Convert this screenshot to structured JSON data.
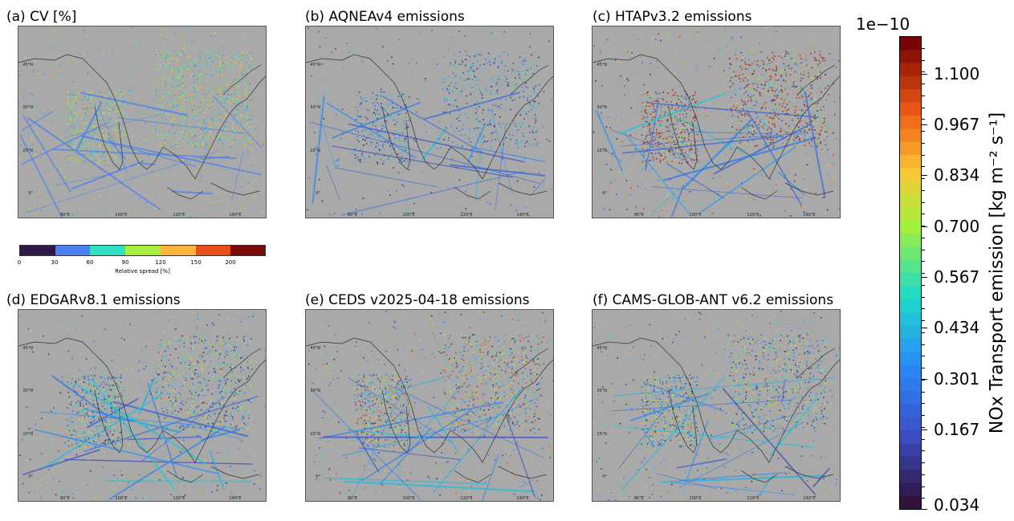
{
  "panels": [
    {
      "id": "a",
      "title": "(a) CV [%]",
      "style": "cv"
    },
    {
      "id": "b",
      "title": "(b) AQNEAv4 emissions",
      "style": "low"
    },
    {
      "id": "c",
      "title": "(c) HTAPv3.2 emissions",
      "style": "high"
    },
    {
      "id": "d",
      "title": "(d) EDGARv8.1 emissions",
      "style": "mid"
    },
    {
      "id": "e",
      "title": "(e) CEDS v2025-04-18 emissions",
      "style": "midhigh"
    },
    {
      "id": "f",
      "title": "(f) CAMS-GLOB-ANT v6.2 emissions",
      "style": "mid"
    }
  ],
  "map_axes": {
    "lat_labels": [
      "45°N",
      "30°N",
      "15°N",
      "0°"
    ],
    "lon_labels": [
      "80°E",
      "100°E",
      "120°E",
      "140°E"
    ]
  },
  "cv_colorbar": {
    "label": "Relative spread  [%]",
    "ticks": [
      "0",
      "30",
      "60",
      "90",
      "120",
      "150",
      "200"
    ],
    "colors": [
      "#2b1a48",
      "#4a7ff0",
      "#2ee0c0",
      "#a8f040",
      "#ffb43c",
      "#e8501a",
      "#7a0a08"
    ]
  },
  "emission_colorbar": {
    "multiplier": "1e−10",
    "label": "NOx Transport emission  [kg m⁻² s⁻¹]",
    "ticks": [
      "1.100",
      "0.967",
      "0.834",
      "0.700",
      "0.567",
      "0.434",
      "0.301",
      "0.167",
      "0.034"
    ],
    "colors": {
      "low": "#30123b",
      "mid": "#1ae4b6",
      "high": "#7a0403"
    }
  }
}
